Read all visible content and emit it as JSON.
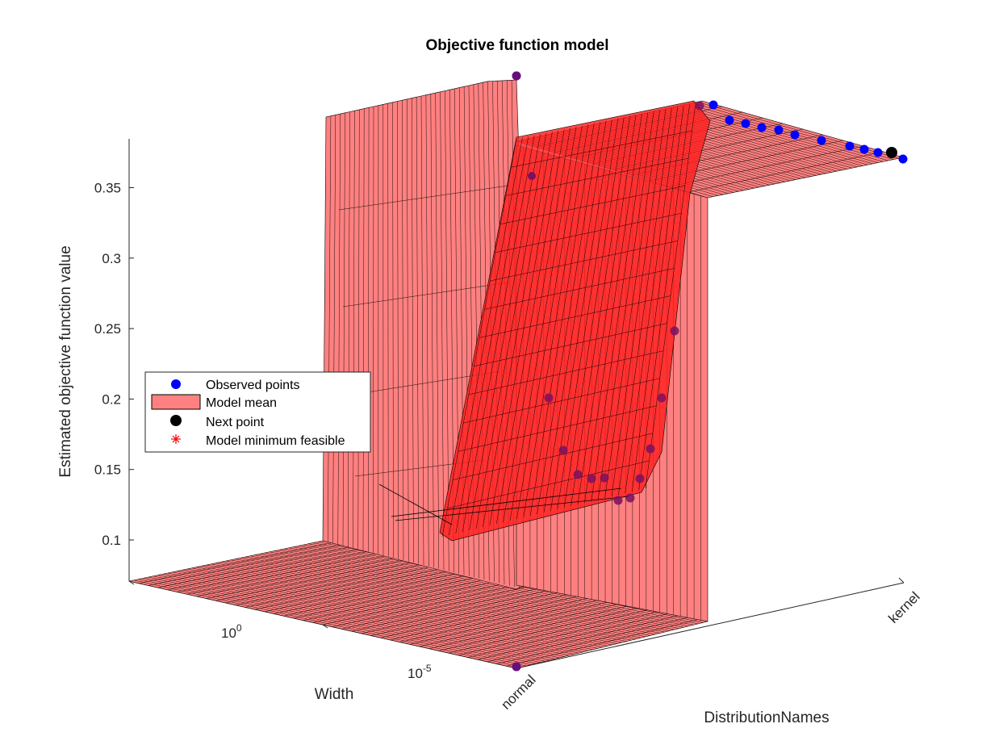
{
  "chart_data": {
    "type": "surface",
    "title": "Objective function model",
    "zlabel": "Estimated objective function value",
    "xlabel": "Width",
    "ylabel": "DistributionNames",
    "zlim": [
      0.07,
      0.385
    ],
    "z_ticks": [
      {
        "value": 0.35,
        "label": "0.35"
      },
      {
        "value": 0.3,
        "label": "0.3"
      },
      {
        "value": 0.25,
        "label": "0.25"
      },
      {
        "value": 0.2,
        "label": "0.2"
      },
      {
        "value": 0.15,
        "label": "0.15"
      },
      {
        "value": 0.1,
        "label": "0.1"
      }
    ],
    "width_ticks": [
      {
        "log10": 0,
        "base": "10",
        "exp": "0"
      },
      {
        "log10": -5,
        "base": "10",
        "exp": "-5"
      }
    ],
    "category_ticks": [
      "normal",
      "kernel"
    ],
    "legend": {
      "placement": "middle-left",
      "entries": [
        {
          "label": "Observed points",
          "marker": "blue-dot"
        },
        {
          "label": "Model mean",
          "marker": "salmon-patch"
        },
        {
          "label": "Next point",
          "marker": "black-dot"
        },
        {
          "label": "Model minimum feasible",
          "marker": "red-asterisk"
        }
      ]
    },
    "colors": {
      "observed": "#0000ff",
      "surface_face": "#ff8080",
      "surface_edge": "#000000",
      "next_point": "#000000",
      "model_min": "#ff0000"
    },
    "series": [
      {
        "name": "Observed points",
        "points": [
          {
            "category": "normal",
            "log10_width": -7.4,
            "z": 0.073
          },
          {
            "category": "normal",
            "log10_width": 3.8,
            "z": 0.375
          },
          {
            "category": "kernel",
            "log10_width": -7.2,
            "z": 0.364
          },
          {
            "category": "kernel",
            "log10_width": -5.8,
            "z": 0.357
          },
          {
            "category": "kernel",
            "log10_width": -4.6,
            "z": 0.349
          },
          {
            "category": "kernel",
            "log10_width": -3.4,
            "z": 0.346
          },
          {
            "category": "kernel",
            "log10_width": -2.2,
            "z": 0.345
          },
          {
            "category": "kernel",
            "log10_width": -1.0,
            "z": 0.343
          },
          {
            "category": "kernel",
            "log10_width": 0.2,
            "z": 0.341
          },
          {
            "category": "kernel",
            "log10_width": 1.6,
            "z": 0.338
          },
          {
            "category": "kernel",
            "log10_width": 2.9,
            "z": 0.335
          },
          {
            "category": "kernel",
            "log10_width": 3.4,
            "z": 0.335
          },
          {
            "category": "kernel",
            "log10_width": 3.9,
            "z": 0.334
          },
          {
            "category": "kernel",
            "log10_width": 4.3,
            "z": 0.331
          },
          {
            "category": "mid",
            "log10_width": 1.3,
            "z": 0.352
          },
          {
            "category": "mid",
            "log10_width": -5.2,
            "z": 0.249
          },
          {
            "category": "mid",
            "log10_width": -5.4,
            "z": 0.2
          },
          {
            "category": "mid",
            "log10_width": -5.5,
            "z": 0.165
          },
          {
            "category": "mid",
            "log10_width": -5.6,
            "z": 0.142
          },
          {
            "category": "mid",
            "log10_width": -5.2,
            "z": 0.13
          },
          {
            "category": "mid",
            "log10_width": -4.6,
            "z": 0.128
          },
          {
            "category": "mid",
            "log10_width": -3.8,
            "z": 0.142
          },
          {
            "category": "mid",
            "log10_width": -3.0,
            "z": 0.145
          },
          {
            "category": "mid",
            "log10_width": -2.4,
            "z": 0.145
          },
          {
            "category": "mid",
            "log10_width": -1.6,
            "z": 0.147
          },
          {
            "category": "mid",
            "log10_width": -0.2,
            "z": 0.167
          },
          {
            "category": "mid",
            "log10_width": 0.6,
            "z": 0.201
          }
        ]
      },
      {
        "name": "Next point",
        "points": [
          {
            "category": "kernel",
            "log10_width": 4.0,
            "z": 0.335
          }
        ]
      }
    ]
  }
}
